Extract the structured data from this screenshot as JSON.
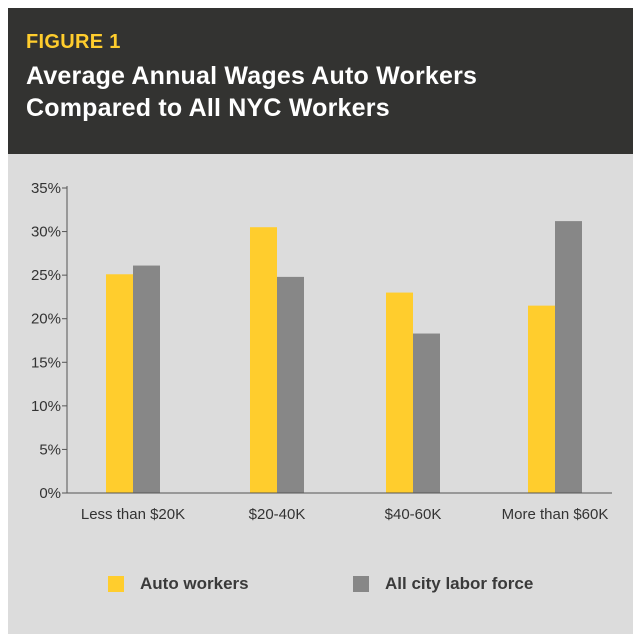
{
  "figure_label": "FIGURE 1",
  "title_line1": "Average Annual Wages Auto Workers",
  "title_line2": "Compared to All NYC Workers",
  "colors": {
    "header_bg": "#333331",
    "accent": "#ffcd2d",
    "auto": "#ffcd2d",
    "city": "#878787",
    "panel_bg": "#dcdcdc"
  },
  "legend": {
    "auto": "Auto workers",
    "city": "All city labor force"
  },
  "chart_data": {
    "type": "bar",
    "title": "Average Annual Wages Auto Workers Compared to All NYC Workers",
    "categories": [
      "Less than $20K",
      "$20-40K",
      "$40-60K",
      "More than $60K"
    ],
    "series": [
      {
        "name": "Auto workers",
        "values": [
          25.1,
          30.5,
          23.0,
          21.5
        ]
      },
      {
        "name": "All city labor force",
        "values": [
          26.1,
          24.8,
          18.3,
          31.2
        ]
      }
    ],
    "ylim": [
      0,
      35
    ],
    "yticks": [
      0,
      5,
      10,
      15,
      20,
      25,
      30,
      35
    ],
    "ytick_labels": [
      "0%",
      "5%",
      "10%",
      "15%",
      "20%",
      "25%",
      "30%",
      "35%"
    ],
    "xlabel": "",
    "ylabel": "",
    "grid": false,
    "legend_position": "bottom"
  }
}
